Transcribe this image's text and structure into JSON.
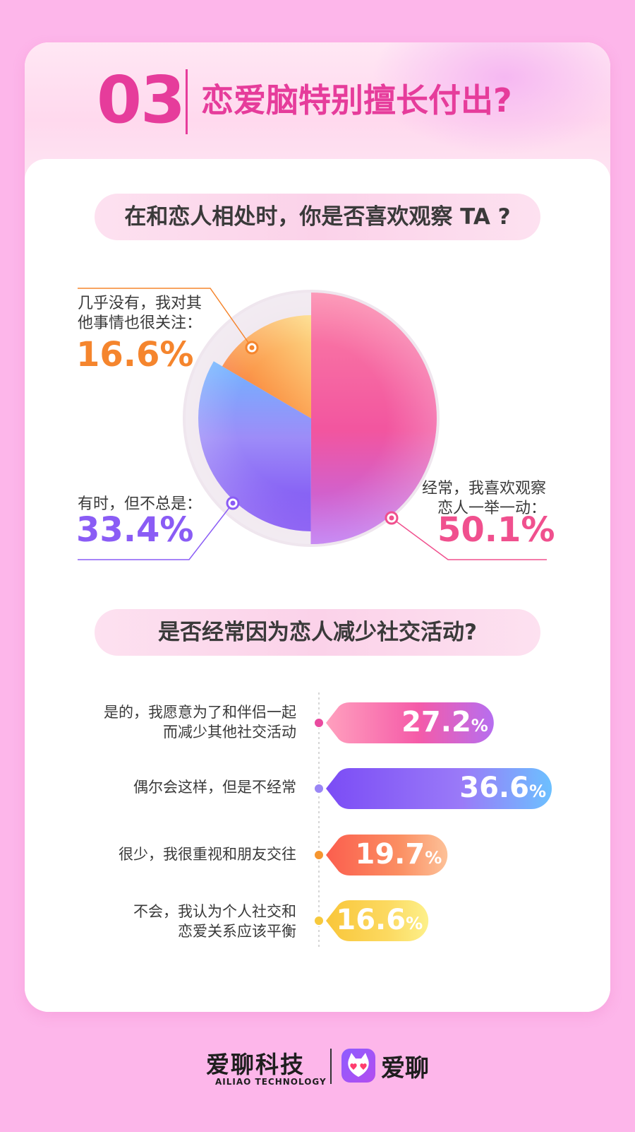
{
  "header": {
    "section_number": "03",
    "title": "恋爱脑特别擅长付出?"
  },
  "colors": {
    "background": "#fdb6ea",
    "accent": "#e63c9b",
    "often": "#f0508e",
    "sometimes": "#8a5cf5",
    "rarely": "#f5852d",
    "never": "#f7c93c"
  },
  "chart_data": [
    {
      "type": "pie",
      "title": "在和恋人相处时，你是否喜欢观察 TA ?",
      "slices": [
        {
          "label": "经常，我喜欢观察恋人一举一动：",
          "line1": "经常，我喜欢观察",
          "line2": "恋人一举一动：",
          "value": 50.1,
          "value_label": "50.1%"
        },
        {
          "label": "有时，但不总是：",
          "line1": "有时，但不总是：",
          "line2": "",
          "value": 33.4,
          "value_label": "33.4%"
        },
        {
          "label": "几乎没有，我对其他事情也很关注：",
          "line1": "几乎没有，我对其",
          "line2": "他事情也很关注：",
          "value": 16.6,
          "value_label": "16.6%"
        }
      ]
    },
    {
      "type": "bar",
      "orientation": "horizontal",
      "title": "是否经常因为恋人减少社交活动?",
      "unit": "%",
      "categories": [
        "是的，我愿意为了和伴侣一起而减少其他社交活动",
        "偶尔会这样，但是不经常",
        "很少，我很重视和朋友交往",
        "不会，我认为个人社交和恋爱关系应该平衡"
      ],
      "category_lines": [
        [
          "是的，我愿意为了和伴侣一起",
          "而减少其他社交活动"
        ],
        [
          "偶尔会这样，但是不经常",
          ""
        ],
        [
          "很少，我很重视和朋友交往",
          ""
        ],
        [
          "不会，我认为个人社交和",
          "恋爱关系应该平衡"
        ]
      ],
      "values": [
        27.2,
        36.6,
        19.7,
        16.6
      ],
      "value_labels": [
        "27.2",
        "36.6",
        "19.7",
        "16.6"
      ]
    }
  ],
  "footer": {
    "company_cn": "爱聊科技",
    "company_en": "AILIAO TECHNOLOGY",
    "app_name": "爱聊"
  }
}
